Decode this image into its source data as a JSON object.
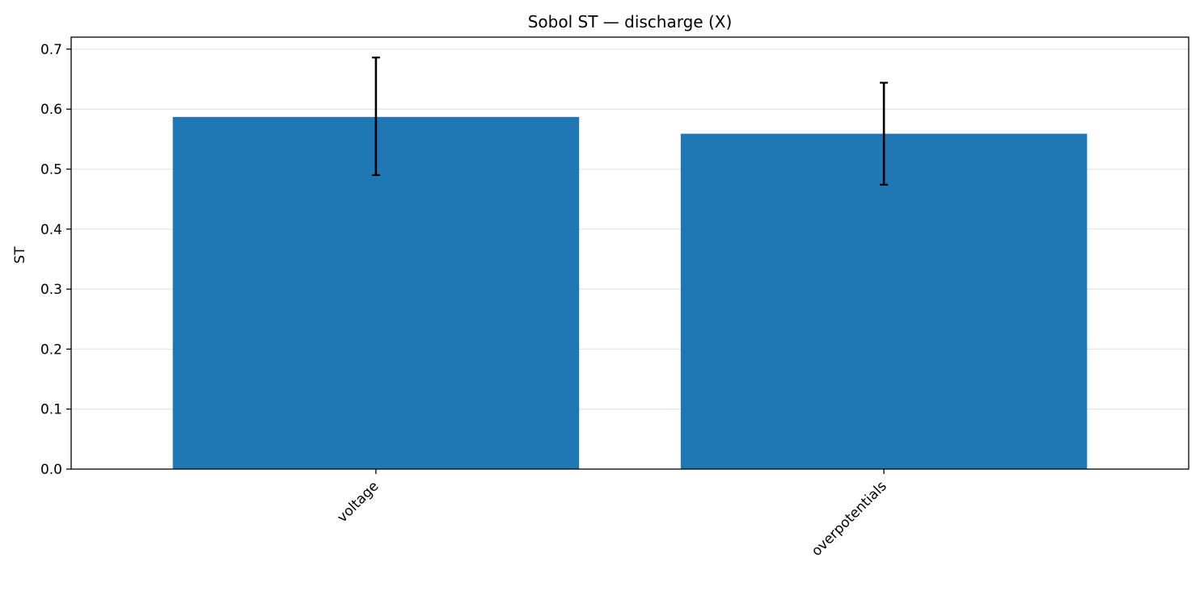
{
  "chart_data": {
    "type": "bar",
    "title": "Sobol ST — discharge (X)",
    "xlabel": "",
    "ylabel": "ST",
    "categories": [
      "voltage",
      "overpotentials"
    ],
    "values": [
      0.587,
      0.559
    ],
    "error_low": [
      0.49,
      0.474
    ],
    "error_high": [
      0.686,
      0.644
    ],
    "ylim": [
      0,
      0.72
    ],
    "yticks": [
      0.0,
      0.1,
      0.2,
      0.3,
      0.4,
      0.5,
      0.6,
      0.7
    ],
    "ytick_labels": [
      "0.0",
      "0.1",
      "0.2",
      "0.3",
      "0.4",
      "0.5",
      "0.6",
      "0.7"
    ],
    "grid": "y",
    "legend": "none",
    "bar_color": "#1f77b4",
    "error_color": "#000000",
    "grid_color": "#e6e6e6"
  }
}
